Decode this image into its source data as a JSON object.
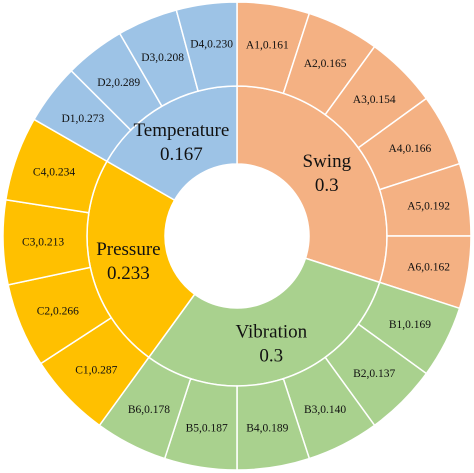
{
  "chart_data": {
    "type": "sunburst",
    "title": "",
    "colors": {
      "Swing": "#f4b183",
      "Vibration": "#a9d18e",
      "Pressure": "#ffc000",
      "Temperature": "#9dc3e6"
    },
    "categories": [
      {
        "name": "Swing",
        "value": "0.3",
        "weight": 0.3,
        "children": [
          {
            "label": "A1,0.161",
            "weight": 0.161
          },
          {
            "label": "A2,0.165",
            "weight": 0.165
          },
          {
            "label": "A3,0.154",
            "weight": 0.154
          },
          {
            "label": "A4,0.166",
            "weight": 0.166
          },
          {
            "label": "A5,0.192",
            "weight": 0.192
          },
          {
            "label": "A6,0.162",
            "weight": 0.162
          }
        ]
      },
      {
        "name": "Vibration",
        "value": "0.3",
        "weight": 0.3,
        "children": [
          {
            "label": "B1,0.169",
            "weight": 0.169
          },
          {
            "label": "B2,0.137",
            "weight": 0.137
          },
          {
            "label": "B3,0.140",
            "weight": 0.14
          },
          {
            "label": "B4,0.189",
            "weight": 0.189
          },
          {
            "label": "B5,0.187",
            "weight": 0.187
          },
          {
            "label": "B6,0.178",
            "weight": 0.178
          }
        ]
      },
      {
        "name": "Pressure",
        "value": "0.233",
        "weight": 0.233,
        "children": [
          {
            "label": "C1,0.287",
            "weight": 0.287
          },
          {
            "label": "C2,0.266",
            "weight": 0.266
          },
          {
            "label": "C3,0.213",
            "weight": 0.213
          },
          {
            "label": "C4,0.234",
            "weight": 0.234
          }
        ]
      },
      {
        "name": "Temperature",
        "value": "0.167",
        "weight": 0.167,
        "children": [
          {
            "label": "D1,0.273",
            "weight": 0.273
          },
          {
            "label": "D2,0.289",
            "weight": 0.289
          },
          {
            "label": "D3,0.208",
            "weight": 0.208
          },
          {
            "label": "D4,0.230",
            "weight": 0.23
          }
        ]
      }
    ]
  }
}
